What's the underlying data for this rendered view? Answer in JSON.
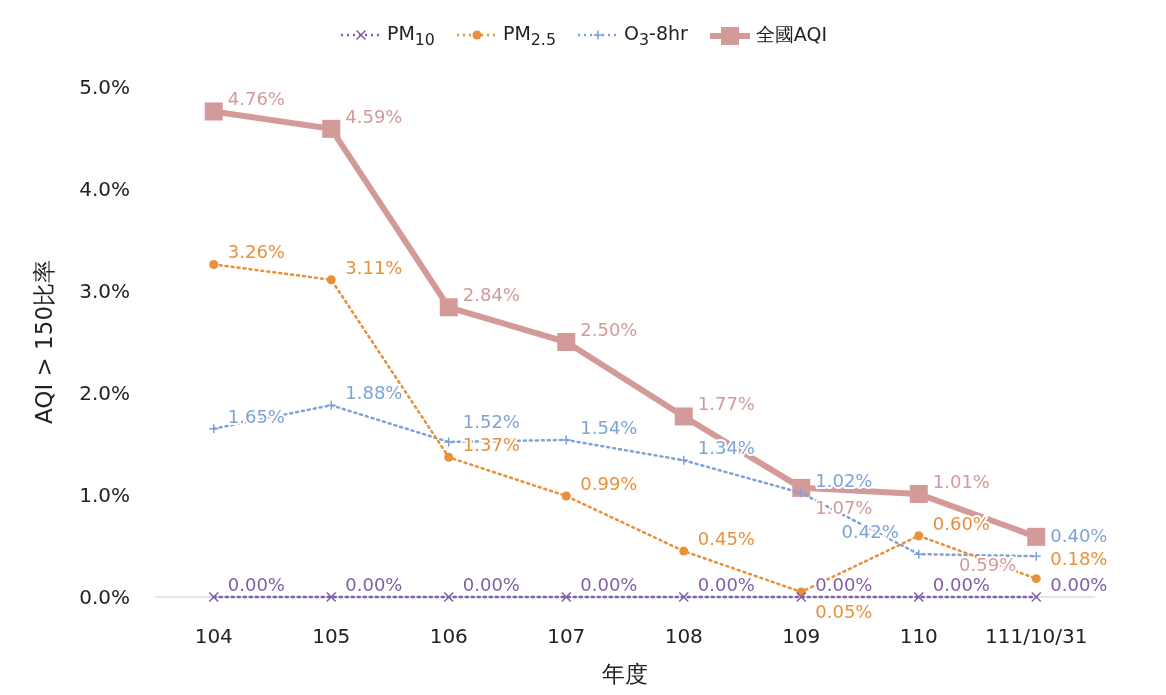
{
  "chart_data": {
    "type": "line",
    "xlabel": "年度",
    "ylabel": "AQI > 150比率",
    "categories": [
      "104",
      "105",
      "106",
      "107",
      "108",
      "109",
      "110",
      "111/10/31"
    ],
    "ylim": [
      0,
      5.0
    ],
    "yticks": [
      {
        "value": 0,
        "label": "0.0%"
      },
      {
        "value": 1,
        "label": "1.0%"
      },
      {
        "value": 2,
        "label": "2.0%"
      },
      {
        "value": 3,
        "label": "3.0%"
      },
      {
        "value": 4,
        "label": "4.0%"
      },
      {
        "value": 5,
        "label": "5.0%"
      }
    ],
    "grid": false,
    "legend": "top",
    "series": [
      {
        "name": "PM$_{10}$",
        "color": "#7f5fa8",
        "marker": "cross",
        "line_style": "dotted",
        "values": [
          0,
          0,
          0,
          0,
          0,
          0,
          0,
          0
        ],
        "value_labels": [
          "0.00%",
          "0.00%",
          "0.00%",
          "0.00%",
          "0.00%",
          "0.00%",
          "0.00%",
          "0.00%"
        ]
      },
      {
        "name": "PM$_{2.5}$",
        "color": "#e8903a",
        "marker": "circle",
        "line_style": "dotted",
        "values": [
          3.26,
          3.11,
          1.37,
          0.99,
          0.45,
          0.05,
          0.6,
          0.18
        ],
        "value_labels": [
          "3.26%",
          "3.11%",
          "1.37%",
          "0.99%",
          "0.45%",
          "0.05%",
          "0.60%",
          "0.18%"
        ]
      },
      {
        "name": "O$_{3}$-8hr",
        "color": "#7fa3d6",
        "marker": "plus",
        "line_style": "dotted",
        "values": [
          1.65,
          1.88,
          1.52,
          1.54,
          1.34,
          1.02,
          0.42,
          0.4
        ],
        "value_labels": [
          "1.65%",
          "1.88%",
          "1.52%",
          "1.54%",
          "1.34%",
          "1.02%",
          "0.42%",
          "0.40%"
        ]
      },
      {
        "name": "全國AQI",
        "color": "#d49a9a",
        "marker": "square",
        "line_style": "solid",
        "values": [
          4.76,
          4.59,
          2.84,
          2.5,
          1.77,
          1.07,
          1.01,
          0.59
        ],
        "value_labels": [
          "4.76%",
          "4.59%",
          "2.84%",
          "2.50%",
          "1.77%",
          "1.07%",
          "1.01%",
          "0.59%"
        ]
      }
    ]
  }
}
